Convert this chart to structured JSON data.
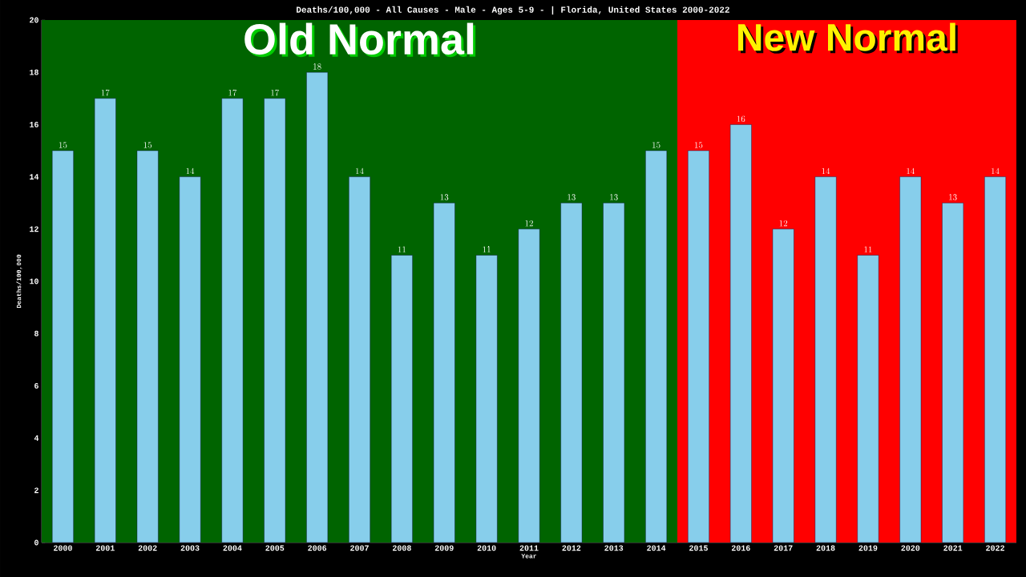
{
  "chart_data": {
    "type": "bar",
    "title": "Deaths/100,000 - All Causes - Male - Ages 5-9 -  | Florida, United States 2000-2022",
    "xlabel": "Year",
    "ylabel": "Deaths/100,000",
    "categories": [
      "2000",
      "2001",
      "2002",
      "2003",
      "2004",
      "2005",
      "2006",
      "2007",
      "2008",
      "2009",
      "2010",
      "2011",
      "2012",
      "2013",
      "2014",
      "2015",
      "2016",
      "2017",
      "2018",
      "2019",
      "2020",
      "2021",
      "2022"
    ],
    "values": [
      15,
      17,
      15,
      14,
      17,
      17,
      18,
      14,
      11,
      13,
      11,
      12,
      13,
      13,
      15,
      15,
      16,
      12,
      14,
      11,
      14,
      13,
      14
    ],
    "color": "#87ceeb",
    "data_labels": true,
    "ylim": [
      0,
      20
    ],
    "yticks": [
      0,
      2,
      4,
      6,
      8,
      10,
      12,
      14,
      16,
      18,
      20
    ],
    "grid": false,
    "bands": [
      {
        "axis": "x",
        "from": "2000",
        "to": "2014",
        "label": "Old Normal",
        "color": "#006400"
      },
      {
        "axis": "x",
        "from": "2015",
        "to": "2022",
        "label": "New Normal",
        "color": "#ff0000"
      }
    ]
  }
}
